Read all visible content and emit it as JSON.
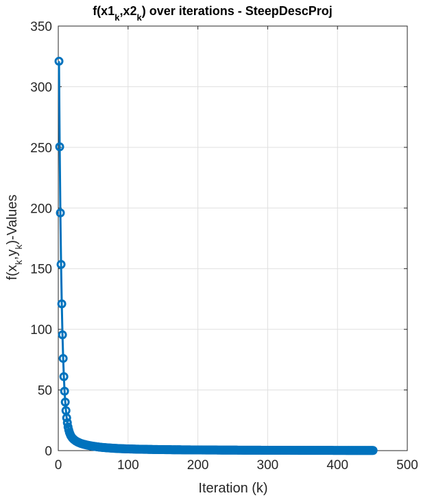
{
  "chart_data": {
    "type": "line",
    "title": {
      "parts": [
        "f(x1",
        "k",
        ",x2",
        "k",
        ") over iterations - SteepDescProj"
      ]
    },
    "xlabel": "Iteration (k)",
    "ylabel": {
      "parts": [
        "f(x",
        "k",
        ",y",
        "k",
        ")-Values"
      ]
    },
    "xlim": [
      0,
      500
    ],
    "ylim": [
      0,
      350
    ],
    "xticks": [
      0,
      100,
      200,
      300,
      400,
      500
    ],
    "yticks": [
      0,
      50,
      100,
      150,
      200,
      250,
      300,
      350
    ],
    "grid": true,
    "box": true,
    "marker": "circle",
    "line_color": "#0072BD",
    "series": [
      {
        "x": [
          1,
          2,
          3,
          4,
          5,
          6,
          7,
          8,
          9,
          10,
          11,
          12,
          13,
          14,
          15,
          16,
          17,
          18,
          20,
          22,
          25,
          28,
          32,
          36,
          40,
          45,
          50,
          60,
          70,
          80,
          90,
          100,
          120,
          140,
          160,
          180,
          200,
          230,
          260,
          300,
          350,
          400,
          451
        ],
        "y": [
          321,
          250.5,
          196,
          153.5,
          121,
          95.5,
          76,
          61,
          49,
          40,
          33,
          27,
          23,
          19.5,
          17,
          15,
          13.5,
          12.2,
          10.5,
          9.3,
          8.0,
          7.0,
          6.0,
          5.3,
          4.7,
          4.1,
          3.6,
          2.8,
          2.3,
          1.9,
          1.6,
          1.4,
          1.1,
          0.9,
          0.75,
          0.65,
          0.55,
          0.45,
          0.38,
          0.3,
          0.22,
          0.17,
          0.13
        ]
      }
    ]
  }
}
